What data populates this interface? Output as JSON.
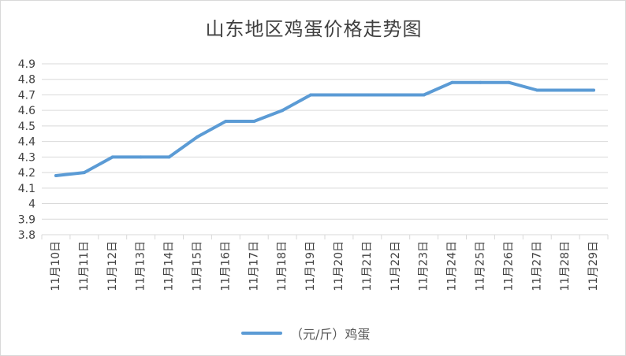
{
  "chart_data": {
    "type": "line",
    "title": "山东地区鸡蛋价格走势图",
    "categories": [
      "11月10日",
      "11月11日",
      "11月12日",
      "11月13日",
      "11月14日",
      "11月15日",
      "11月16日",
      "11月17日",
      "11月18日",
      "11月19日",
      "11月20日",
      "11月21日",
      "11月22日",
      "11月23日",
      "11月24日",
      "11月25日",
      "11月26日",
      "11月27日",
      "11月28日",
      "11月29日"
    ],
    "series": [
      {
        "name": "（元/斤）鸡蛋",
        "values": [
          4.18,
          4.2,
          4.3,
          4.3,
          4.3,
          4.43,
          4.53,
          4.53,
          4.6,
          4.7,
          4.7,
          4.7,
          4.7,
          4.7,
          4.78,
          4.78,
          4.78,
          4.73,
          4.73,
          4.73
        ],
        "color": "#5b9bd5"
      }
    ],
    "yticks": [
      "3.8",
      "3.9",
      "4",
      "4.1",
      "4.2",
      "4.3",
      "4.4",
      "4.5",
      "4.6",
      "4.7",
      "4.8",
      "4.9"
    ],
    "ylim": [
      3.8,
      4.9
    ],
    "grid": true,
    "legend_position": "bottom"
  }
}
